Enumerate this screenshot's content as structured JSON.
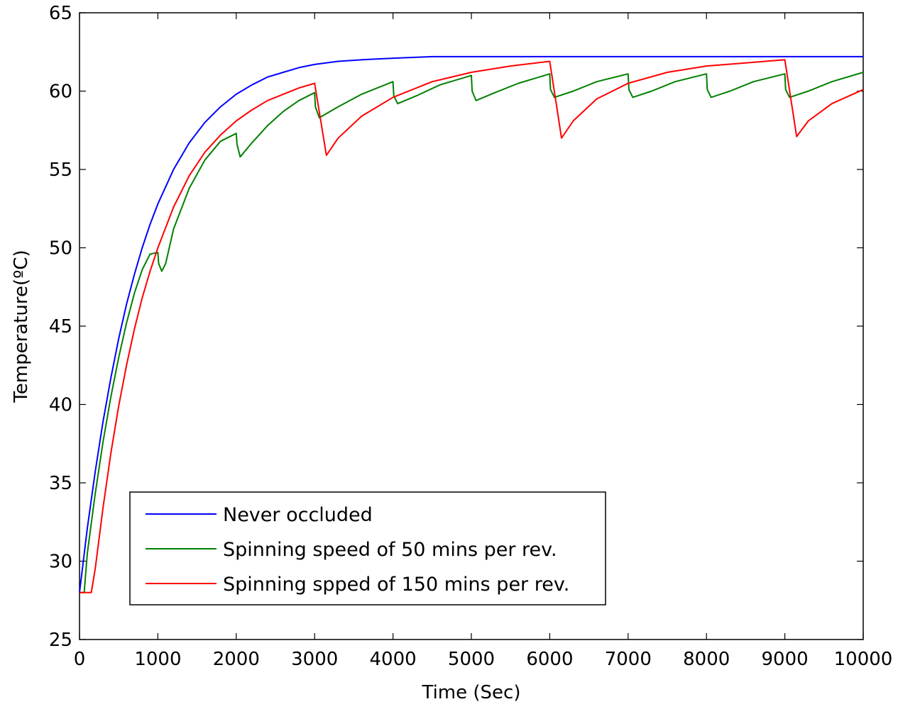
{
  "chart_data": {
    "type": "line",
    "title": "",
    "xlabel": "Time (Sec)",
    "ylabel": "Temperature(ºC)",
    "xlim": [
      0,
      10000
    ],
    "ylim": [
      25,
      65
    ],
    "xticks": [
      0,
      1000,
      2000,
      3000,
      4000,
      5000,
      6000,
      7000,
      8000,
      9000,
      10000
    ],
    "yticks": [
      25,
      30,
      35,
      40,
      45,
      50,
      55,
      60,
      65
    ],
    "xtick_labels": [
      "0",
      "1000",
      "2000",
      "3000",
      "4000",
      "5000",
      "6000",
      "7000",
      "8000",
      "9000",
      "10000"
    ],
    "ytick_labels": [
      "25",
      "30",
      "35",
      "40",
      "45",
      "50",
      "55",
      "60",
      "65"
    ],
    "grid": false,
    "legend_position": "bottom-left",
    "series": [
      {
        "name": "Never occluded",
        "color": "#0000ff",
        "x": [
          0,
          100,
          200,
          300,
          400,
          500,
          600,
          700,
          800,
          900,
          1000,
          1200,
          1400,
          1600,
          1800,
          2000,
          2200,
          2400,
          2600,
          2800,
          3000,
          3300,
          3600,
          4000,
          4500,
          5000,
          5500,
          6000,
          7000,
          8000,
          9000,
          10000
        ],
        "y": [
          28.0,
          32.1,
          35.7,
          38.9,
          41.7,
          44.2,
          46.4,
          48.3,
          50.0,
          51.5,
          52.8,
          55.0,
          56.7,
          58.0,
          59.0,
          59.8,
          60.4,
          60.9,
          61.2,
          61.5,
          61.7,
          61.9,
          62.0,
          62.1,
          62.2,
          62.2,
          62.2,
          62.2,
          62.2,
          62.2,
          62.2,
          62.2
        ]
      },
      {
        "name": "Spinning speed of 50 mins per rev.",
        "color": "#008000",
        "x": [
          0,
          60,
          100,
          200,
          300,
          400,
          500,
          600,
          700,
          800,
          900,
          1000,
          1010,
          1050,
          1100,
          1200,
          1400,
          1600,
          1800,
          2000,
          2010,
          2050,
          2200,
          2400,
          2600,
          2800,
          3000,
          3010,
          3060,
          3300,
          3600,
          4000,
          4010,
          4060,
          4300,
          4600,
          5000,
          5010,
          5060,
          5300,
          5600,
          6000,
          6010,
          6060,
          6300,
          6600,
          7000,
          7010,
          7060,
          7300,
          7600,
          8000,
          8010,
          8060,
          8300,
          8600,
          9000,
          9010,
          9060,
          9300,
          9600,
          10000
        ],
        "y": [
          28.0,
          28.0,
          30.5,
          34.3,
          37.6,
          40.5,
          43.0,
          45.2,
          47.1,
          48.6,
          49.6,
          49.7,
          49.0,
          48.5,
          49.0,
          51.2,
          53.8,
          55.6,
          56.8,
          57.3,
          56.6,
          55.8,
          56.7,
          57.8,
          58.7,
          59.4,
          59.9,
          59.0,
          58.3,
          59.0,
          59.8,
          60.6,
          59.7,
          59.2,
          59.7,
          60.4,
          61.0,
          60.0,
          59.4,
          59.9,
          60.5,
          61.1,
          60.1,
          59.6,
          60.0,
          60.6,
          61.1,
          60.1,
          59.6,
          60.0,
          60.6,
          61.1,
          60.1,
          59.6,
          60.0,
          60.6,
          61.1,
          60.1,
          59.6,
          60.0,
          60.6,
          61.2
        ]
      },
      {
        "name": "Spinning spped of 150 mins per rev.",
        "color": "#ff0000",
        "x": [
          0,
          150,
          200,
          300,
          400,
          500,
          600,
          700,
          800,
          900,
          1000,
          1200,
          1400,
          1600,
          1800,
          2000,
          2200,
          2400,
          2600,
          2800,
          3000,
          3150,
          3300,
          3600,
          4000,
          4500,
          5000,
          5500,
          6000,
          6150,
          6300,
          6600,
          7000,
          7500,
          8000,
          8500,
          9000,
          9150,
          9300,
          9600,
          10000
        ],
        "y": [
          28.0,
          28.0,
          29.5,
          33.4,
          36.9,
          39.9,
          42.5,
          44.8,
          46.8,
          48.5,
          50.0,
          52.6,
          54.6,
          56.1,
          57.2,
          58.1,
          58.8,
          59.4,
          59.8,
          60.2,
          60.5,
          55.9,
          57.0,
          58.4,
          59.6,
          60.6,
          61.2,
          61.6,
          61.9,
          57.0,
          58.1,
          59.5,
          60.5,
          61.2,
          61.6,
          61.8,
          62.0,
          57.1,
          58.1,
          59.2,
          60.1
        ]
      }
    ]
  }
}
